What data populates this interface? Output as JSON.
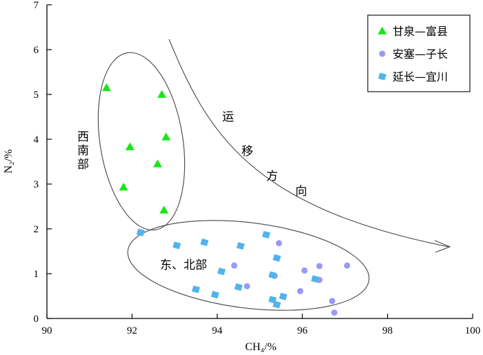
{
  "chart_data": {
    "type": "scatter",
    "xlabel": "CH₄/%",
    "ylabel": "N₂/%",
    "xlim": [
      90,
      100
    ],
    "ylim": [
      0,
      7
    ],
    "xticks": [
      90,
      92,
      94,
      96,
      98,
      100
    ],
    "yticks": [
      0,
      1,
      2,
      3,
      4,
      5,
      6,
      7
    ],
    "grid": false,
    "legend": "top-right",
    "series": [
      {
        "name": "甘泉—富县",
        "marker": "triangle",
        "color": "#19e619",
        "points": [
          [
            91.4,
            5.15
          ],
          [
            92.7,
            5.0
          ],
          [
            92.8,
            4.05
          ],
          [
            91.95,
            3.83
          ],
          [
            92.6,
            3.45
          ],
          [
            91.8,
            2.93
          ],
          [
            92.75,
            2.42
          ]
        ]
      },
      {
        "name": "安塞—子长",
        "marker": "circle",
        "color": "#9a9af5",
        "points": [
          [
            95.45,
            1.68
          ],
          [
            94.4,
            1.18
          ],
          [
            94.7,
            0.72
          ],
          [
            95.35,
            0.95
          ],
          [
            96.05,
            1.07
          ],
          [
            96.4,
            1.17
          ],
          [
            97.05,
            1.18
          ],
          [
            96.4,
            0.86
          ],
          [
            95.95,
            0.61
          ],
          [
            96.7,
            0.39
          ],
          [
            96.75,
            0.13
          ]
        ]
      },
      {
        "name": "延长—宜川",
        "marker": "diamond",
        "color": "#4fb4ee",
        "points": [
          [
            92.2,
            1.92
          ],
          [
            93.05,
            1.63
          ],
          [
            93.7,
            1.7
          ],
          [
            94.55,
            1.62
          ],
          [
            95.15,
            1.87
          ],
          [
            95.4,
            1.35
          ],
          [
            94.1,
            1.05
          ],
          [
            95.3,
            0.97
          ],
          [
            96.3,
            0.88
          ],
          [
            93.5,
            0.65
          ],
          [
            93.95,
            0.53
          ],
          [
            94.5,
            0.7
          ],
          [
            95.3,
            0.42
          ],
          [
            95.55,
            0.49
          ],
          [
            95.4,
            0.31
          ]
        ]
      }
    ],
    "annotations": {
      "southwest_region": "西南部",
      "east_north_region": "东、北部",
      "migration_direction": [
        "运",
        "移",
        "方",
        "向"
      ]
    }
  }
}
